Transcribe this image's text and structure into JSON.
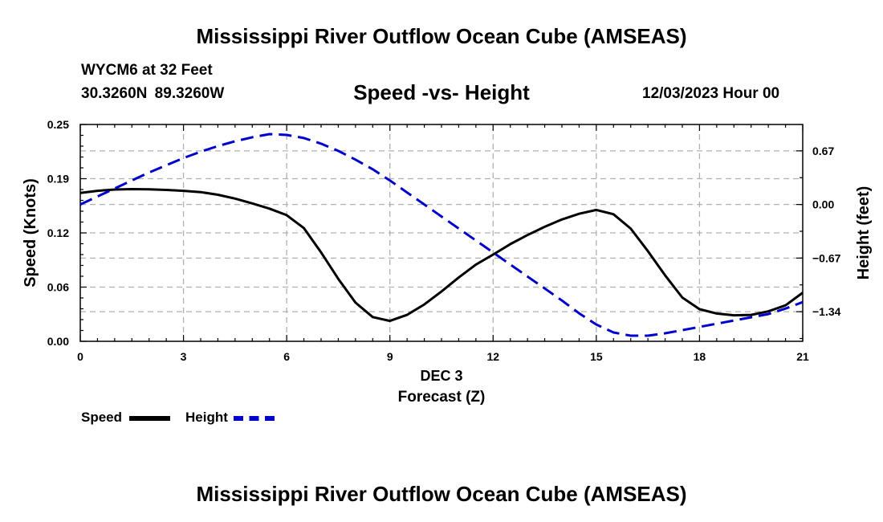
{
  "page_title": "Mississippi River Outflow Ocean Cube (AMSEAS)",
  "station": {
    "name_depth": "WYCM6 at 32 Feet",
    "coords": "30.3260N  89.3260W",
    "datetime": "12/03/2023 Hour 00"
  },
  "colors": {
    "speed": "#000000",
    "height": "#0000cc",
    "grid": "#b0b0b0"
  },
  "chart_data": {
    "type": "line",
    "title": "Speed -vs- Height",
    "xlabel_top": "DEC 3",
    "xlabel": "Forecast (Z)",
    "ylabel": "Speed (Knots)",
    "y2label": "Height (feet)",
    "xlim": [
      0,
      21
    ],
    "ylim": [
      0,
      0.25
    ],
    "y2lim": [
      -1.71,
      1.0
    ],
    "x_ticks": [
      0,
      3,
      6,
      9,
      12,
      15,
      18,
      21
    ],
    "x_tick_labels": [
      "0",
      "3",
      "6",
      "9",
      "12",
      "15",
      "18",
      "21"
    ],
    "y_ticks": [
      0,
      0.0625,
      0.125,
      0.1875,
      0.25
    ],
    "y_tick_labels": [
      "0.00",
      "0.06",
      "0.12",
      "0.19",
      "0.25"
    ],
    "y2_ticks": [
      0.67,
      0.0,
      -0.67,
      -1.34
    ],
    "y2_tick_labels": [
      "0.67",
      "0.00",
      "−0.67",
      "−1.34"
    ],
    "grid": true,
    "series": [
      {
        "name": "Speed",
        "axis": "left",
        "style": "solid",
        "x": [
          0,
          0.5,
          1,
          1.5,
          2,
          2.5,
          3,
          3.5,
          4,
          4.5,
          5,
          5.5,
          6,
          6.5,
          7,
          7.5,
          8,
          8.5,
          9,
          9.5,
          10,
          10.5,
          11,
          11.5,
          12,
          12.5,
          13,
          13.5,
          14,
          14.5,
          15,
          15.5,
          16,
          16.5,
          17,
          17.5,
          18,
          18.5,
          19,
          19.5,
          20,
          20.5,
          21
        ],
        "values": [
          0.171,
          0.1735,
          0.175,
          0.1755,
          0.1752,
          0.1745,
          0.1735,
          0.172,
          0.169,
          0.1645,
          0.159,
          0.153,
          0.1455,
          0.1305,
          0.1025,
          0.072,
          0.0445,
          0.028,
          0.0235,
          0.0305,
          0.0425,
          0.0575,
          0.0735,
          0.0885,
          0.1,
          0.112,
          0.1225,
          0.132,
          0.1405,
          0.147,
          0.1515,
          0.1465,
          0.13,
          0.104,
          0.076,
          0.0505,
          0.037,
          0.032,
          0.03,
          0.0305,
          0.0345,
          0.0415,
          0.056
        ]
      },
      {
        "name": "Height",
        "axis": "right",
        "style": "dashed",
        "x": [
          0,
          0.5,
          1,
          1.5,
          2,
          2.5,
          3,
          3.5,
          4,
          4.5,
          5,
          5.5,
          6,
          6.5,
          7,
          7.5,
          8,
          8.5,
          9,
          9.5,
          10,
          10.5,
          11,
          11.5,
          12,
          12.5,
          13,
          13.5,
          14,
          14.5,
          15,
          15.5,
          16,
          16.5,
          17,
          17.5,
          18,
          18.5,
          19,
          19.5,
          20,
          20.5,
          21
        ],
        "values": [
          0.0,
          0.1,
          0.2,
          0.3,
          0.4,
          0.49,
          0.58,
          0.66,
          0.73,
          0.79,
          0.84,
          0.88,
          0.87,
          0.83,
          0.76,
          0.67,
          0.56,
          0.44,
          0.3,
          0.15,
          0.0,
          -0.15,
          -0.3,
          -0.45,
          -0.6,
          -0.75,
          -0.9,
          -1.05,
          -1.2,
          -1.36,
          -1.5,
          -1.6,
          -1.64,
          -1.64,
          -1.61,
          -1.57,
          -1.53,
          -1.49,
          -1.45,
          -1.41,
          -1.37,
          -1.3,
          -1.22
        ]
      }
    ],
    "legend": [
      "Speed",
      "Height"
    ],
    "legend_placement": "bottom-left"
  },
  "footer_title": "Mississippi River Outflow Ocean Cube (AMSEAS)"
}
